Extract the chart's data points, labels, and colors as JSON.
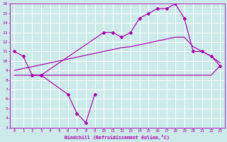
{
  "xlabel": "Windchill (Refroidissement éolien,°C)",
  "bg_color": "#cceaea",
  "grid_color": "#ffffff",
  "line_color": "#aa00aa",
  "xlim": [
    -0.5,
    23.5
  ],
  "ylim": [
    3,
    16
  ],
  "xticks": [
    0,
    1,
    2,
    3,
    4,
    5,
    6,
    7,
    8,
    9,
    10,
    11,
    12,
    13,
    14,
    15,
    16,
    17,
    18,
    19,
    20,
    21,
    22,
    23
  ],
  "yticks": [
    3,
    4,
    5,
    6,
    7,
    8,
    9,
    10,
    11,
    12,
    13,
    14,
    15,
    16
  ],
  "curve_top_x": [
    0,
    1,
    2,
    3,
    10,
    11,
    12,
    13,
    14,
    15,
    16,
    17,
    18,
    19,
    20,
    21,
    22,
    23
  ],
  "curve_top_y": [
    11.0,
    10.5,
    8.5,
    8.5,
    13.0,
    13.0,
    12.5,
    13.0,
    14.5,
    15.0,
    15.5,
    15.5,
    16.0,
    14.5,
    11.0,
    11.0,
    10.5,
    9.5
  ],
  "curve_dip_x": [
    2,
    3,
    6,
    7,
    8,
    9
  ],
  "curve_dip_y": [
    8.5,
    8.5,
    6.5,
    4.5,
    3.5,
    6.5
  ],
  "curve_flat_x": [
    0,
    1,
    2,
    3,
    4,
    5,
    6,
    7,
    8,
    9,
    10,
    11,
    12,
    13,
    14,
    15,
    16,
    17,
    18,
    19,
    20,
    21,
    22,
    23
  ],
  "curve_flat_y": [
    8.5,
    8.5,
    8.5,
    8.5,
    8.5,
    8.5,
    8.5,
    8.5,
    8.5,
    8.5,
    8.5,
    8.5,
    8.5,
    8.5,
    8.5,
    8.5,
    8.5,
    8.5,
    8.5,
    8.5,
    8.5,
    8.5,
    8.5,
    9.5
  ],
  "curve_diag_x": [
    0,
    1,
    2,
    3,
    4,
    5,
    6,
    7,
    8,
    9,
    10,
    11,
    12,
    13,
    14,
    15,
    16,
    17,
    18,
    19,
    20,
    21,
    22,
    23
  ],
  "curve_diag_y": [
    9.0,
    9.2,
    9.4,
    9.6,
    9.8,
    10.0,
    10.2,
    10.4,
    10.6,
    10.8,
    11.0,
    11.2,
    11.4,
    11.5,
    11.7,
    11.9,
    12.1,
    12.3,
    12.5,
    12.5,
    11.5,
    11.0,
    10.5,
    9.8
  ]
}
